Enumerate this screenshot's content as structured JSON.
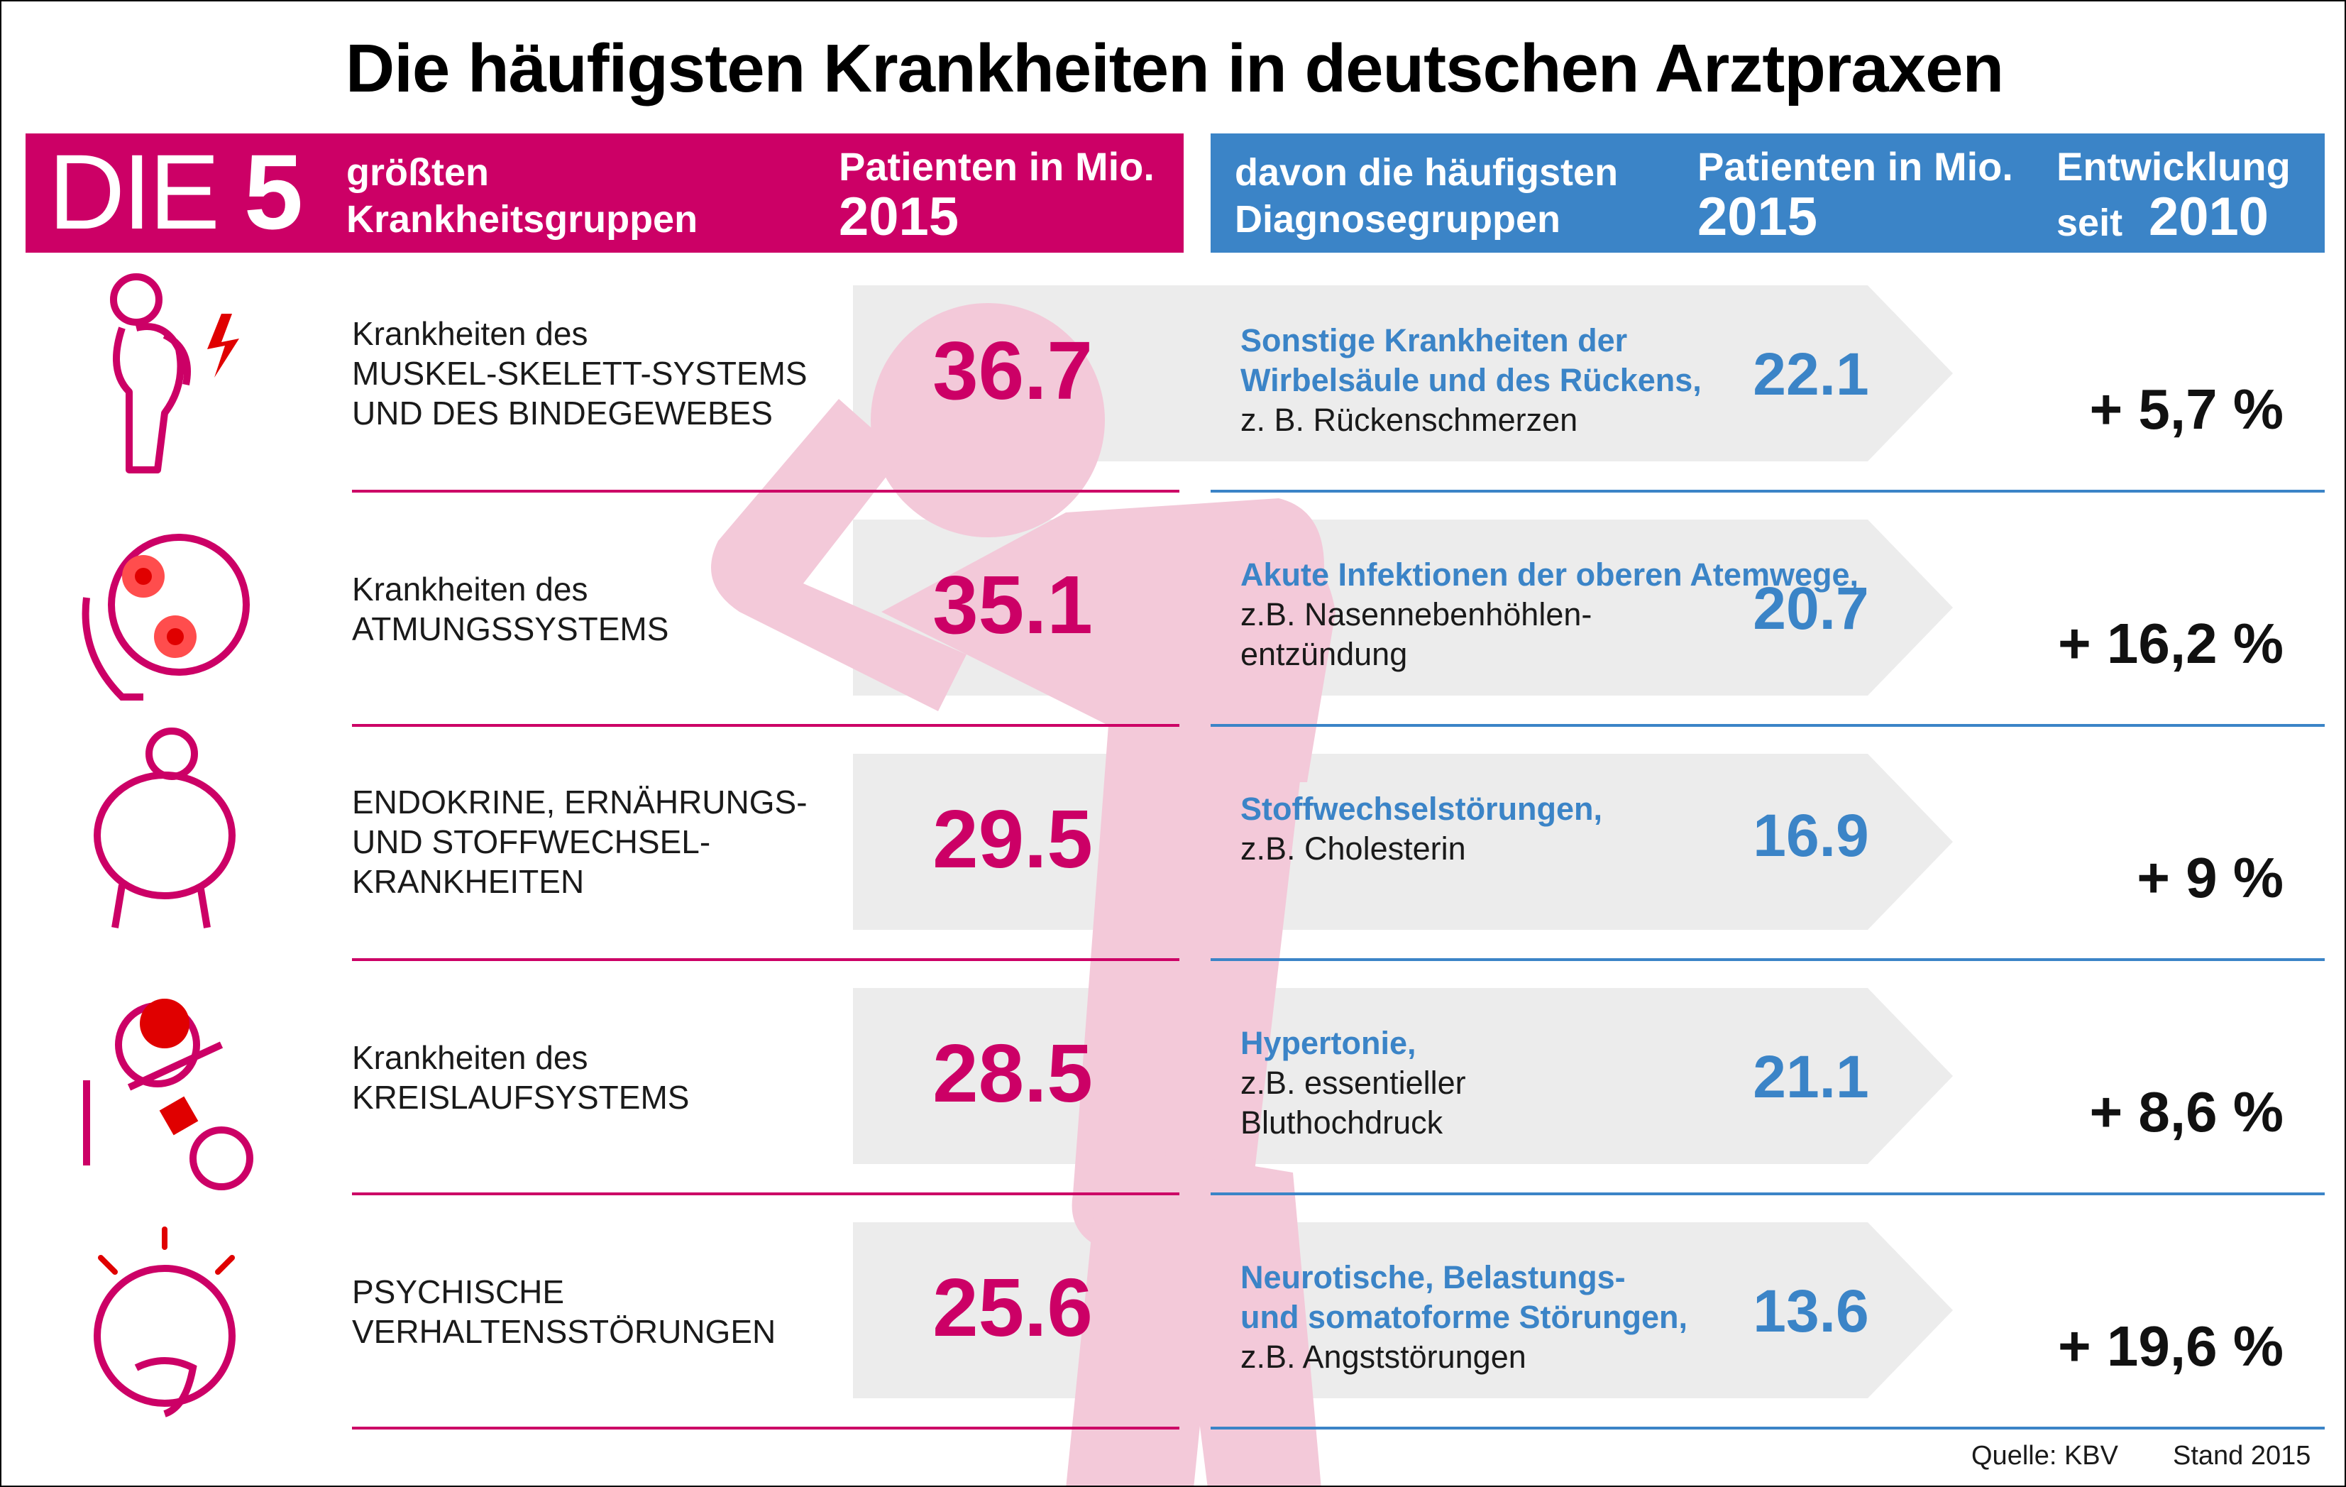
{
  "title": "Die häufigsten Krankheiten in deutschen Arztpraxen",
  "header_left": {
    "die": "DIE",
    "five": "5",
    "subtitle_line1": "größten",
    "subtitle_line2": "Krankheitsgruppen",
    "patients_label": "Patienten in Mio.",
    "year": "2015"
  },
  "header_right": {
    "subtitle_line1": "davon die häufigsten",
    "subtitle_line2": "Diagnosegruppen",
    "patients_label": "Patienten in Mio.",
    "year": "2015",
    "trend_label": "Entwicklung",
    "trend_since": "seit",
    "trend_year": "2010"
  },
  "rows": [
    {
      "icon": "back-pain-icon",
      "group_lines": [
        "Krankheiten des",
        "MUSKEL-SKELETT-SYSTEMS",
        "UND DES BINDEGEWEBES"
      ],
      "value_label": "36.7",
      "diag_lines": [
        "Sonstige Krankheiten der",
        "Wirbelsäule und des Rückens,"
      ],
      "example_lines": [
        "z. B. Rückenschmerzen"
      ],
      "diag_value_label": "22.1",
      "trend": "+ 5,7 %"
    },
    {
      "icon": "sick-face-icon",
      "group_lines": [
        "Krankheiten des",
        "ATMUNGSSYSTEMS"
      ],
      "value_label": "35.1",
      "diag_lines": [
        "Akute Infektionen der oberen Atemwege,"
      ],
      "example_lines": [
        "z.B. Nasennebenhöhlen-",
        "entzündung"
      ],
      "diag_value_label": "20.7",
      "trend": "+ 16,2 %"
    },
    {
      "icon": "overweight-icon",
      "group_lines": [
        "ENDOKRINE, ERNÄHRUNGS-",
        "UND STOFFWECHSEL-",
        "KRANKHEITEN"
      ],
      "value_label": "29.5",
      "diag_lines": [
        "Stoffwechselstörungen,"
      ],
      "example_lines": [
        "z.B. Cholesterin"
      ],
      "diag_value_label": "16.9",
      "trend": "+ 9 %"
    },
    {
      "icon": "blood-pressure-icon",
      "group_lines": [
        "Krankheiten des",
        "KREISLAUFSYSTEMS"
      ],
      "value_label": "28.5",
      "diag_lines": [
        "Hypertonie,"
      ],
      "example_lines": [
        "z.B. essentieller",
        "Bluthochdruck"
      ],
      "diag_value_label": "21.1",
      "trend": "+ 8,6 %"
    },
    {
      "icon": "anxious-face-icon",
      "group_lines": [
        "PSYCHISCHE",
        "VERHALTENSSTÖRUNGEN"
      ],
      "value_label": "25.6",
      "diag_lines": [
        "Neurotische, Belastungs-",
        "und somatoforme Störungen,"
      ],
      "example_lines": [
        "z.B. Angststörungen"
      ],
      "diag_value_label": "13.6",
      "trend": "+ 19,6 %"
    }
  ],
  "chart_data": {
    "type": "table",
    "title": "Die häufigsten Krankheiten in deutschen Arztpraxen",
    "columns": [
      "Krankheitsgruppe",
      "Patienten in Mio. 2015",
      "Diagnosegruppe",
      "Patienten in Mio. 2015",
      "Entwicklung seit 2010"
    ],
    "rows": [
      [
        "Krankheiten des MUSKEL-SKELETT-SYSTEMS UND DES BINDEGEWEBES",
        36.7,
        "Sonstige Krankheiten der Wirbelsäule und des Rückens, z. B. Rückenschmerzen",
        22.1,
        "+ 5,7 %"
      ],
      [
        "Krankheiten des ATMUNGSSYSTEMS",
        35.1,
        "Akute Infektionen der oberen Atemwege, z.B. Nasennebenhöhlen-entzündung",
        20.7,
        "+ 16,2 %"
      ],
      [
        "ENDOKRINE, ERNÄHRUNGS- UND STOFFWECHSEL-KRANKHEITEN",
        29.5,
        "Stoffwechselstörungen, z.B. Cholesterin",
        16.9,
        "+ 9 %"
      ],
      [
        "Krankheiten des KREISLAUFSYSTEMS",
        28.5,
        "Hypertonie, z.B. essentieller Bluthochdruck",
        21.1,
        "+ 8,6 %"
      ],
      [
        "PSYCHISCHE VERHALTENSSTÖRUNGEN",
        25.6,
        "Neurotische, Belastungs- und somatoforme Störungen, z.B. Angststörungen",
        13.6,
        "+ 19,6 %"
      ]
    ]
  },
  "footer": {
    "source": "Quelle: KBV",
    "stand": "Stand 2015"
  },
  "colors": {
    "magenta": "#cc0066",
    "blue": "#3b84c7",
    "arrow_gray": "#ececec",
    "figure_pink": "#f3c9d9"
  }
}
